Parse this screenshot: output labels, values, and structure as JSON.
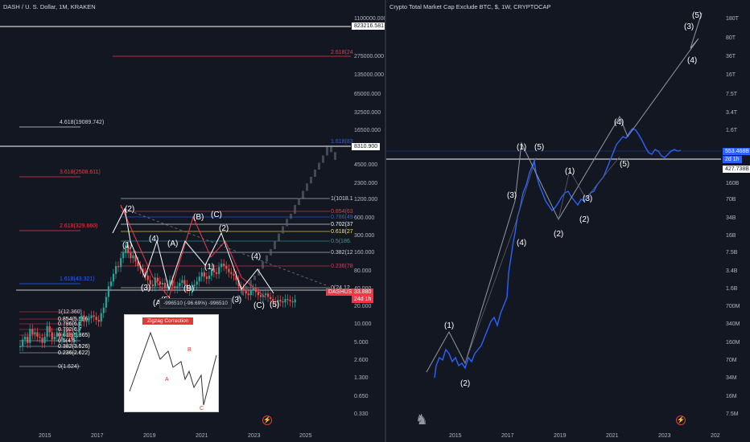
{
  "left": {
    "title": "DASH / U. S. Dollar, 1M, KRAKEN",
    "y_labels": [
      "1100000.000",
      "550000.000",
      "275000.000",
      "135000.000",
      "65000.000",
      "32500.000",
      "16500.000",
      "8310.900",
      "4500.000",
      "2300.000",
      "1200.000",
      "600.000",
      "300.000",
      "160.000",
      "80.000",
      "40.000",
      "20.000",
      "10.000",
      "5.000",
      "2.600",
      "1.300",
      "0.650",
      "0.330"
    ],
    "x_labels": [
      "2015",
      "2017",
      "2019",
      "2021",
      "2023",
      "2025"
    ],
    "price_tags": {
      "top": "823216.581",
      "mid": "8310.900",
      "last_symbol": "DASHUSD",
      "last_price": "33.880",
      "last_time": "24d 1h"
    },
    "fib_left": [
      "4.618(19089.742)",
      "3.618(2508.611)",
      "2.618(329.660)",
      "1.618(43.321)"
    ],
    "fib_mid": [
      "1(1018.1",
      "0.854(63",
      "0.786(49",
      "0.702(37",
      "0.618(27",
      "0.5(186.",
      "0.382(12",
      "0.236(78",
      "0(24.12"
    ],
    "fib_small": [
      "1(12.360)",
      "0.854(5.586)",
      "0.786(6.1",
      "0.702(6.7",
      "0.618(5.865)",
      "0.5(4.5",
      "0.382(3.526)",
      "0.236(2.622)",
      "0(1.624)"
    ],
    "fib_top": [
      "2.618(24",
      "1.618(83"
    ],
    "waves_white": [
      "(2)",
      "(1)",
      "(3)",
      "(4)",
      "(5)",
      "(1)",
      "(2)",
      "(3)",
      "(4)",
      "(5)"
    ],
    "waves_red": [
      "(B)",
      "(A)",
      "(C)"
    ],
    "waves_green": [
      "(A)",
      "(B)",
      "(C)"
    ],
    "measure": "-996510 (-96.69%) -996510",
    "inset": {
      "title": "Zigzag Correction",
      "labels": [
        "A",
        "B",
        "C"
      ]
    },
    "colors": {
      "up": "#26a69a",
      "down": "#ef5350",
      "fib_red": "#f23645",
      "fib_blue": "#2962ff",
      "fib_white": "#d1d4dc"
    }
  },
  "right": {
    "title": "Crypto Total Market Cap Exclude BTC, $, 1W, CRYPTOCAP",
    "y_labels": [
      "180T",
      "80T",
      "36T",
      "16T",
      "7.5T",
      "3.4T",
      "1.6T",
      "753.468B",
      "427.738B",
      "160B",
      "70B",
      "34B",
      "16B",
      "7.5B",
      "3.4B",
      "1.6B",
      "700M",
      "340M",
      "160M",
      "70M",
      "34M",
      "16M",
      "7.5M"
    ],
    "price_tags": {
      "a": "553.468B",
      "a_time": "2d 1h",
      "b": "427.738B"
    },
    "x_labels": [
      "2015",
      "2017",
      "2019",
      "2021",
      "2023",
      "202"
    ],
    "waves": [
      "(1)",
      "(2)",
      "(3)",
      "(4)",
      "(1)",
      "(5)",
      "(1)",
      "(2)",
      "(3)",
      "(4)",
      "(5)",
      "(3)",
      "(4)",
      "(5)",
      "(2)"
    ],
    "colors": {
      "line": "#2962ff",
      "wave_line": "#9598a1"
    }
  },
  "chart_data": [
    {
      "type": "candlestick",
      "title": "DASH / U. S. Dollar, 1M, KRAKEN",
      "scale": "log",
      "ylim": [
        0.33,
        1100000
      ],
      "x_range": [
        "2014",
        "2025"
      ],
      "last_price": 33.88
    },
    {
      "type": "line",
      "title": "Crypto Total Market Cap Exclude BTC, $, 1W, CRYPTOCAP",
      "scale": "log",
      "ylim": [
        "7.5M",
        "180T"
      ],
      "x_range": [
        "2014",
        "2024"
      ],
      "last_value": "553.468B"
    }
  ]
}
